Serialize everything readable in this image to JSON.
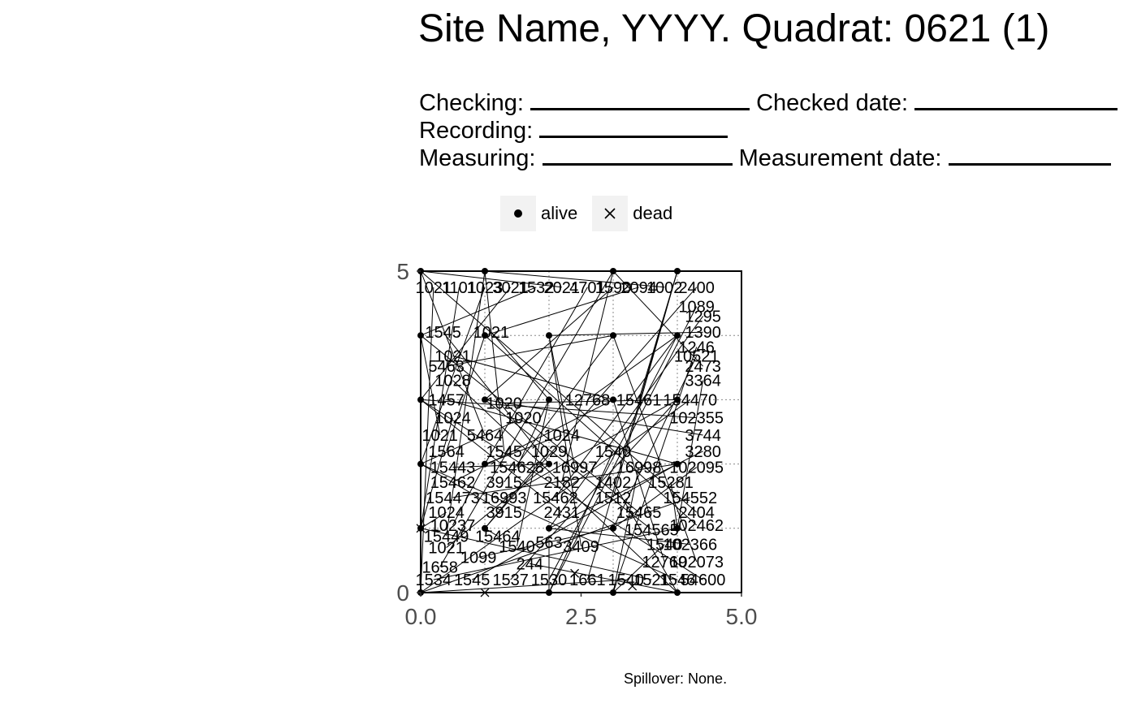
{
  "title": "Site Name, YYYY. Quadrat: 0621 (1)",
  "form": {
    "checking_label": "Checking:",
    "checked_date_label": "Checked date:",
    "recording_label": "Recording:",
    "measuring_label": "Measuring:",
    "measurement_date_label": "Measurement date:"
  },
  "legend": {
    "alive": "alive",
    "dead": "dead"
  },
  "footer": "Spillover: None.",
  "chart_data": {
    "type": "scatter",
    "xlim": [
      0,
      5
    ],
    "ylim": [
      0,
      5
    ],
    "x_tick_labels": [
      "0.0",
      "2.5",
      "5.0"
    ],
    "y_tick_labels": [
      "0",
      "5"
    ],
    "grid": "dotted minor",
    "legend_position": "top",
    "point_styles": {
      "alive": "filled-circle",
      "dead": "x-cross"
    },
    "point_labels": [
      {
        "label": "1021",
        "x": 0.2,
        "y": 4.75
      },
      {
        "label": "1101",
        "x": 0.6,
        "y": 4.75
      },
      {
        "label": "1023",
        "x": 1.0,
        "y": 4.75
      },
      {
        "label": "3021",
        "x": 1.4,
        "y": 4.75
      },
      {
        "label": "1532",
        "x": 1.8,
        "y": 4.75
      },
      {
        "label": "2021",
        "x": 2.2,
        "y": 4.75
      },
      {
        "label": "4701",
        "x": 2.6,
        "y": 4.75
      },
      {
        "label": "1590",
        "x": 3.0,
        "y": 4.75
      },
      {
        "label": "2094",
        "x": 3.4,
        "y": 4.75
      },
      {
        "label": "1002",
        "x": 3.8,
        "y": 4.75
      },
      {
        "label": "2400",
        "x": 4.3,
        "y": 4.75
      },
      {
        "label": "1089",
        "x": 4.3,
        "y": 4.45
      },
      {
        "label": "1295",
        "x": 4.4,
        "y": 4.3
      },
      {
        "label": "1545",
        "x": 0.35,
        "y": 4.05
      },
      {
        "label": "1021",
        "x": 1.1,
        "y": 4.05
      },
      {
        "label": "1390",
        "x": 4.4,
        "y": 4.05
      },
      {
        "label": "1246",
        "x": 4.3,
        "y": 3.82
      },
      {
        "label": "10521",
        "x": 4.3,
        "y": 3.68
      },
      {
        "label": "1021",
        "x": 0.5,
        "y": 3.68
      },
      {
        "label": "5463",
        "x": 0.4,
        "y": 3.52
      },
      {
        "label": "2473",
        "x": 4.4,
        "y": 3.52
      },
      {
        "label": "1028",
        "x": 0.5,
        "y": 3.3
      },
      {
        "label": "3364",
        "x": 4.4,
        "y": 3.3
      },
      {
        "label": "1457",
        "x": 0.4,
        "y": 3.0
      },
      {
        "label": "1020",
        "x": 1.3,
        "y": 2.95
      },
      {
        "label": "12768",
        "x": 2.6,
        "y": 3.0
      },
      {
        "label": "15461",
        "x": 3.4,
        "y": 3.0
      },
      {
        "label": "154470",
        "x": 4.2,
        "y": 3.0
      },
      {
        "label": "1024",
        "x": 0.5,
        "y": 2.72
      },
      {
        "label": "1020",
        "x": 1.6,
        "y": 2.72
      },
      {
        "label": "102355",
        "x": 4.3,
        "y": 2.72
      },
      {
        "label": "1021",
        "x": 0.3,
        "y": 2.45
      },
      {
        "label": "5464",
        "x": 1.0,
        "y": 2.45
      },
      {
        "label": "1024",
        "x": 2.2,
        "y": 2.45
      },
      {
        "label": "3744",
        "x": 4.4,
        "y": 2.45
      },
      {
        "label": "1564",
        "x": 0.4,
        "y": 2.2
      },
      {
        "label": "1545",
        "x": 1.3,
        "y": 2.2
      },
      {
        "label": "1029",
        "x": 2.0,
        "y": 2.2
      },
      {
        "label": "1540",
        "x": 3.0,
        "y": 2.2
      },
      {
        "label": "3280",
        "x": 4.4,
        "y": 2.2
      },
      {
        "label": "15443",
        "x": 0.5,
        "y": 1.95
      },
      {
        "label": "154628",
        "x": 1.5,
        "y": 1.95
      },
      {
        "label": "16997",
        "x": 2.4,
        "y": 1.95
      },
      {
        "label": "16998",
        "x": 3.4,
        "y": 1.95
      },
      {
        "label": "102095",
        "x": 4.3,
        "y": 1.95
      },
      {
        "label": "15462",
        "x": 0.5,
        "y": 1.72
      },
      {
        "label": "3915",
        "x": 1.3,
        "y": 1.72
      },
      {
        "label": "2182",
        "x": 2.2,
        "y": 1.72
      },
      {
        "label": "1402",
        "x": 3.0,
        "y": 1.72
      },
      {
        "label": "15281",
        "x": 3.9,
        "y": 1.72
      },
      {
        "label": "154473",
        "x": 0.5,
        "y": 1.48
      },
      {
        "label": "16993",
        "x": 1.3,
        "y": 1.48
      },
      {
        "label": "15462",
        "x": 2.1,
        "y": 1.48
      },
      {
        "label": "1512",
        "x": 3.0,
        "y": 1.48
      },
      {
        "label": "154552",
        "x": 4.2,
        "y": 1.48
      },
      {
        "label": "1024",
        "x": 0.4,
        "y": 1.25
      },
      {
        "label": "3915",
        "x": 1.3,
        "y": 1.25
      },
      {
        "label": "2431",
        "x": 2.2,
        "y": 1.25
      },
      {
        "label": "15465",
        "x": 3.4,
        "y": 1.25
      },
      {
        "label": "2404",
        "x": 4.3,
        "y": 1.25
      },
      {
        "label": "10237",
        "x": 0.5,
        "y": 1.05
      },
      {
        "label": "154565",
        "x": 3.6,
        "y": 0.98
      },
      {
        "label": "102462",
        "x": 4.3,
        "y": 1.05
      },
      {
        "label": "15449",
        "x": 0.4,
        "y": 0.88
      },
      {
        "label": "15464",
        "x": 1.2,
        "y": 0.88
      },
      {
        "label": "563",
        "x": 2.0,
        "y": 0.78
      },
      {
        "label": "102366",
        "x": 4.2,
        "y": 0.75
      },
      {
        "label": "1021",
        "x": 0.4,
        "y": 0.7
      },
      {
        "label": "1540",
        "x": 1.5,
        "y": 0.72
      },
      {
        "label": "3409",
        "x": 2.5,
        "y": 0.72
      },
      {
        "label": "1540",
        "x": 3.8,
        "y": 0.75
      },
      {
        "label": "1099",
        "x": 0.9,
        "y": 0.55
      },
      {
        "label": "12769",
        "x": 3.8,
        "y": 0.48
      },
      {
        "label": "102073",
        "x": 4.3,
        "y": 0.48
      },
      {
        "label": "1658",
        "x": 0.3,
        "y": 0.4
      },
      {
        "label": "244",
        "x": 1.7,
        "y": 0.45
      },
      {
        "label": "1534",
        "x": 0.2,
        "y": 0.2
      },
      {
        "label": "1545",
        "x": 0.8,
        "y": 0.2
      },
      {
        "label": "1537",
        "x": 1.4,
        "y": 0.2
      },
      {
        "label": "1530",
        "x": 2.0,
        "y": 0.2
      },
      {
        "label": "1661",
        "x": 2.6,
        "y": 0.2
      },
      {
        "label": "1540",
        "x": 3.2,
        "y": 0.2
      },
      {
        "label": "1521",
        "x": 3.6,
        "y": 0.2
      },
      {
        "label": "1546",
        "x": 4.0,
        "y": 0.2
      },
      {
        "label": "54600",
        "x": 4.4,
        "y": 0.2
      }
    ],
    "alive_points": [
      {
        "x": 0,
        "y": 0
      },
      {
        "x": 0,
        "y": 1
      },
      {
        "x": 0,
        "y": 2
      },
      {
        "x": 0,
        "y": 3
      },
      {
        "x": 0,
        "y": 4
      },
      {
        "x": 0,
        "y": 5
      },
      {
        "x": 1,
        "y": 2
      },
      {
        "x": 1,
        "y": 3
      },
      {
        "x": 1,
        "y": 4
      },
      {
        "x": 1,
        "y": 5
      },
      {
        "x": 1,
        "y": 1
      },
      {
        "x": 2,
        "y": 0
      },
      {
        "x": 2,
        "y": 1
      },
      {
        "x": 2,
        "y": 2
      },
      {
        "x": 2,
        "y": 3
      },
      {
        "x": 2,
        "y": 4
      },
      {
        "x": 3,
        "y": 0
      },
      {
        "x": 3,
        "y": 1
      },
      {
        "x": 3,
        "y": 3
      },
      {
        "x": 3,
        "y": 4
      },
      {
        "x": 3,
        "y": 5
      },
      {
        "x": 4,
        "y": 0
      },
      {
        "x": 4,
        "y": 1
      },
      {
        "x": 4,
        "y": 2
      },
      {
        "x": 4,
        "y": 3
      },
      {
        "x": 4,
        "y": 4
      },
      {
        "x": 4,
        "y": 5
      }
    ],
    "dead_points": [
      {
        "x": 1,
        "y": 0
      },
      {
        "x": 0,
        "y": 1
      },
      {
        "x": 2.4,
        "y": 0.3
      },
      {
        "x": 3.3,
        "y": 0.1
      }
    ]
  }
}
